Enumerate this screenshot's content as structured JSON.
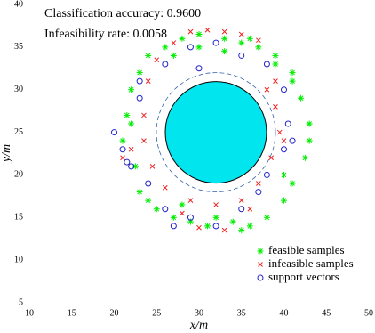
{
  "chart_data": {
    "type": "scatter",
    "annotations": [
      "Classification accuracy: 0.9600",
      "Infeasibility rate: 0.0058"
    ],
    "xlabel": "x/m",
    "ylabel": "y/m",
    "xlim": [
      10,
      50
    ],
    "ylim": [
      5,
      40
    ],
    "xticks": [
      10,
      15,
      20,
      25,
      30,
      35,
      40,
      45,
      50
    ],
    "yticks": [
      5,
      10,
      15,
      20,
      25,
      30,
      35,
      40
    ],
    "legend": "lower right",
    "series": [
      {
        "name": "feasible samples",
        "color": "#00ee00",
        "marker": "star",
        "x": [
          22,
          23,
          21.5,
          24,
          26,
          28,
          30,
          33,
          35,
          37,
          39,
          41,
          42,
          43,
          42.5,
          41,
          40,
          38,
          36,
          34,
          31,
          29,
          27,
          25,
          23,
          22.5,
          21,
          22,
          24,
          27,
          30,
          33,
          36,
          39,
          41,
          43,
          40,
          35,
          32,
          28
        ],
        "y": [
          30,
          32,
          27,
          34,
          35,
          36,
          36.5,
          36,
          35.5,
          35,
          33,
          31,
          29,
          26,
          22,
          19,
          17,
          15,
          14,
          14.5,
          14,
          14.5,
          15,
          16,
          18,
          21,
          24,
          26,
          17,
          34,
          35,
          34.5,
          36,
          34,
          32,
          24,
          20,
          13.5,
          15,
          16.5
        ]
      },
      {
        "name": "infeasible samples",
        "color": "#ee2222",
        "marker": "x",
        "x": [
          24,
          25,
          27,
          29,
          31,
          33,
          35,
          37,
          38,
          39,
          39.5,
          38.5,
          37,
          35,
          32,
          29,
          26,
          24.5,
          23.5,
          23.5,
          21,
          22,
          40,
          39,
          33,
          30,
          28,
          36
        ],
        "y": [
          31,
          33.5,
          35.5,
          36.8,
          37,
          36.8,
          36.5,
          35.8,
          30,
          28,
          25,
          22,
          19,
          17,
          16.5,
          17,
          18.5,
          21,
          24,
          27,
          22,
          23,
          24,
          31,
          13.5,
          13.8,
          15.5,
          16
        ]
      },
      {
        "name": "support vectors",
        "color": "#2222cc",
        "marker": "circle",
        "x": [
          21,
          21.5,
          23,
          26,
          29,
          32,
          35,
          38,
          40,
          40.5,
          40,
          38,
          35,
          32,
          29,
          26,
          24,
          22,
          20,
          30,
          37,
          41,
          23,
          27
        ],
        "y": [
          23,
          21.5,
          31,
          33,
          35,
          35.5,
          34,
          33,
          30,
          26,
          23,
          20,
          16,
          14,
          15,
          16,
          19,
          21,
          25,
          32.5,
          18,
          24,
          29,
          14
        ]
      }
    ]
  }
}
